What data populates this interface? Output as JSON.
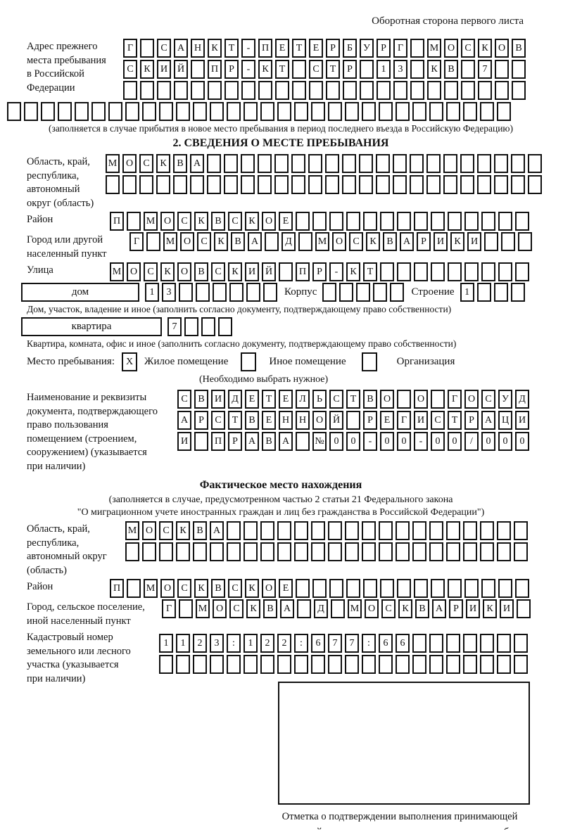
{
  "colors": {
    "ink": "#111111",
    "paper": "#ffffff"
  },
  "header": {
    "note": "Оборотная сторона первого листа"
  },
  "prev_address": {
    "label": "Адрес прежнего\nместа пребывания\nв Российской\nФедерации",
    "row1": {
      "len": 24,
      "text": "Г САНКТ-ПЕТЕРБУРГ МОСКОВ"
    },
    "row2": {
      "len": 24,
      "text": "СКИЙ ПР-КТ СТР 13 КВ 7"
    },
    "row3": {
      "len": 24,
      "text": ""
    },
    "row4": {
      "len": 30,
      "text": ""
    },
    "caption": "(заполняется в случае прибытия в новое место пребывания в период последнего въезда в Российскую Федерацию)"
  },
  "section2": {
    "title": "2. СВЕДЕНИЯ О МЕСТЕ ПРЕБЫВАНИЯ",
    "region": {
      "label": "Область, край,\nреспублика,\nавтономный\nокруг (область)",
      "row1": {
        "len": 26,
        "text": "МОСКВА"
      },
      "row2": {
        "len": 26,
        "text": ""
      }
    },
    "district": {
      "label": "Район",
      "row": {
        "len": 25,
        "text": "П МОСКВСКОЕ"
      }
    },
    "city": {
      "label": "Город или другой\nнаселенный пункт",
      "row": {
        "len": 24,
        "text": "Г МОСКВА Д МОСКВАРИКИ"
      }
    },
    "street": {
      "label": "Улица",
      "row": {
        "len": 25,
        "text": "МОСКОВСКИЙ ПР-КТ"
      }
    },
    "house": {
      "box_label": "дом",
      "cells": {
        "len": 8,
        "text": "13"
      },
      "korpus_label": "Корпус",
      "korpus_cells": {
        "len": 5,
        "text": ""
      },
      "stroenie_label": "Строение",
      "stroenie_cells": {
        "len": 4,
        "text": "1"
      },
      "caption": "Дом, участок, владение и иное (заполнить согласно документу, подтверждающему право собственности)"
    },
    "apartment": {
      "box_label": "квартира",
      "cells": {
        "len": 4,
        "text": "7"
      },
      "caption": "Квартира, комната, офис и иное (заполнить согласно документу, подтверждающему право собственности)"
    },
    "stay_type": {
      "label": "Место пребывания:",
      "options": [
        {
          "label": "Жилое помещение",
          "mark": "X"
        },
        {
          "label": "Иное помещение",
          "mark": ""
        },
        {
          "label": "Организация",
          "mark": ""
        }
      ],
      "caption": "(Необходимо выбрать нужное)"
    },
    "document": {
      "label": "Наименование и реквизиты\nдокумента, подтверждающего\nправо пользования\nпомещением (строением,\nсооружением) (указывается\nпри наличии)",
      "row1": {
        "len": 21,
        "text": "СВИДЕТЕЛЬСТВО О ГОСУД"
      },
      "row2": {
        "len": 21,
        "text": "АРСТВЕННОЙ РЕГИСТРАЦИ"
      },
      "row3": {
        "len": 21,
        "text": "И ПРАВА №00-00-00/000"
      }
    }
  },
  "actual_location": {
    "title": "Фактическое место нахождения",
    "caption1": "(заполняется в случае, предусмотренном частью 2 статьи 21 Федерального закона",
    "caption2": "\"О миграционном учете иностранных граждан и лиц без гражданства в Российской Федерации\")",
    "region": {
      "label": "Область, край,\nреспублика,\nавтономный округ\n(область)",
      "row1": {
        "len": 24,
        "text": "МОСКВА"
      },
      "row2": {
        "len": 24,
        "text": ""
      }
    },
    "district": {
      "label": "Район",
      "row": {
        "len": 25,
        "text": "П МОСКВСКОЕ"
      }
    },
    "city": {
      "label": "Город, сельское поселение,\nиной населенный пункт",
      "row": {
        "len": 22,
        "text": "Г МОСКВА Д МОСКВАРИКИ"
      }
    },
    "cadastral": {
      "label": "Кадастровый номер\nземельного или лесного\nучастка (указывается\nпри наличии)",
      "row1": {
        "len": 22,
        "text": "1123:122:677:66"
      },
      "row2": {
        "len": 22,
        "text": ""
      }
    },
    "stamp_caption": "Отметка о подтверждении выполнения принимающей\nстороной и иностранным гражданином или лицом без\nгражданства действий, необходимых для его постановки\nна учет по месту пребывания"
  }
}
